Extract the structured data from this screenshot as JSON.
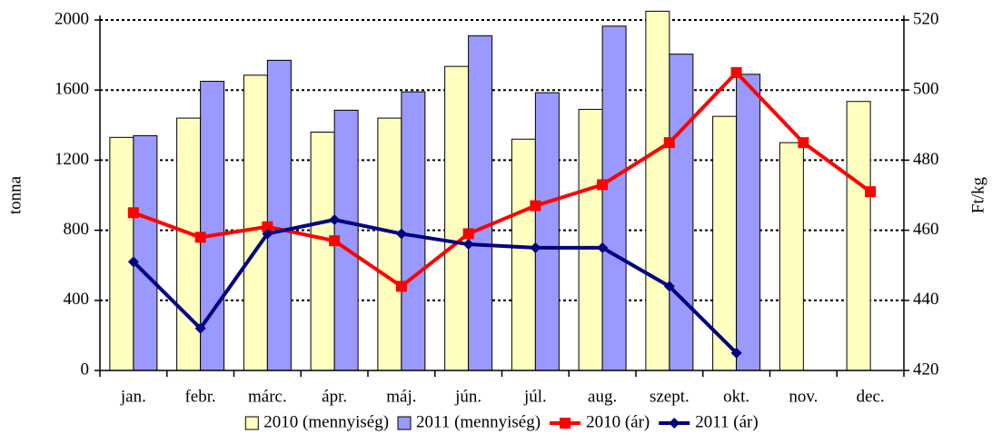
{
  "chart_data": {
    "type": "bar",
    "categories": [
      "jan.",
      "febr.",
      "márc.",
      "ápr.",
      "máj.",
      "jún.",
      "júl.",
      "aug.",
      "szept.",
      "okt.",
      "nov.",
      "dec."
    ],
    "series": [
      {
        "name": "2010 (mennyiség)",
        "color": "#ffffc0",
        "type": "bar",
        "values": [
          1330,
          1440,
          1685,
          1360,
          1440,
          1735,
          1320,
          1490,
          2050,
          1450,
          1300,
          1535
        ]
      },
      {
        "name": "2011 (mennyiség)",
        "color": "#9999ff",
        "type": "bar",
        "values": [
          1340,
          1650,
          1770,
          1485,
          1590,
          1910,
          1585,
          1965,
          1805,
          1690,
          null,
          null
        ]
      },
      {
        "name": "2010 (ár)",
        "color": "#ff0000",
        "type": "line",
        "marker": "square",
        "axis": "y2",
        "values": [
          465,
          458,
          461,
          457,
          444,
          459,
          467,
          473,
          485,
          505,
          485,
          471
        ]
      },
      {
        "name": "2011 (ár)",
        "color": "#000080",
        "type": "line",
        "marker": "diamond",
        "axis": "y2",
        "values": [
          451,
          432,
          459,
          463,
          459,
          456,
          455,
          455,
          444,
          425,
          null,
          null
        ]
      }
    ],
    "ylabel": "tonna",
    "y2label": "Ft/kg",
    "ylim": [
      0,
      2000
    ],
    "yticks": [
      0,
      400,
      800,
      1200,
      1600,
      2000
    ],
    "y2lim": [
      420,
      520
    ],
    "y2ticks": [
      420,
      440,
      460,
      480,
      500,
      520
    ],
    "grid": true,
    "legend": "bottom"
  }
}
